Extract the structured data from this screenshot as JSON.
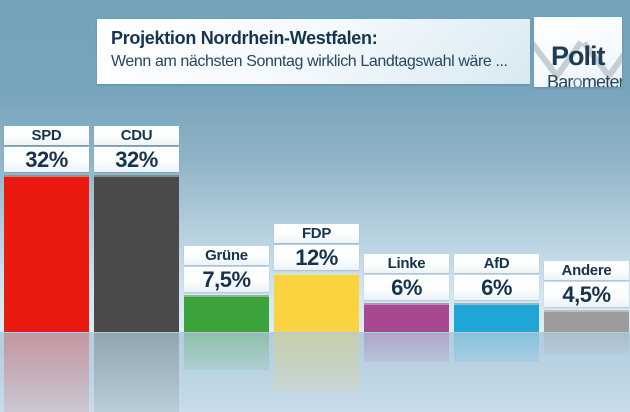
{
  "header": {
    "title": "Projektion Nordrhein-Westfalen:",
    "subtitle": "Wenn am nächsten Sonntag wirklich Landtagswahl wäre ..."
  },
  "logo": {
    "line1": "Polit",
    "line2_pre": "Bar",
    "line2_o": "o",
    "line2_post": "meter"
  },
  "chart_data": {
    "type": "bar",
    "title": "Projektion Nordrhein-Westfalen: Wenn am nächsten Sonntag wirklich Landtagswahl wäre ...",
    "categories": [
      "SPD",
      "CDU",
      "Grüne",
      "FDP",
      "Linke",
      "AfD",
      "Andere"
    ],
    "values": [
      32,
      32,
      7.5,
      12,
      6,
      6,
      4.5
    ],
    "value_labels": [
      "32%",
      "32%",
      "7,5%",
      "12%",
      "6%",
      "6%",
      "4,5%"
    ],
    "bar_colors": [
      "#ea1a10",
      "#4b494b",
      "#3ba33a",
      "#fbd23f",
      "#a84890",
      "#1fa6d6",
      "#9c9c9c"
    ],
    "unit": "%",
    "ylim": [
      0,
      35
    ],
    "grid": false,
    "legend_position": "none"
  },
  "colors": {
    "background_top": "#73a2bb",
    "background_bottom": "#dfedf4",
    "floor": "#b7d0e0",
    "text_dark": "#17344e",
    "label_box": "#ffffff",
    "logo_accent": "#5b87a5",
    "logo_checkmark": "#c3ced6"
  }
}
